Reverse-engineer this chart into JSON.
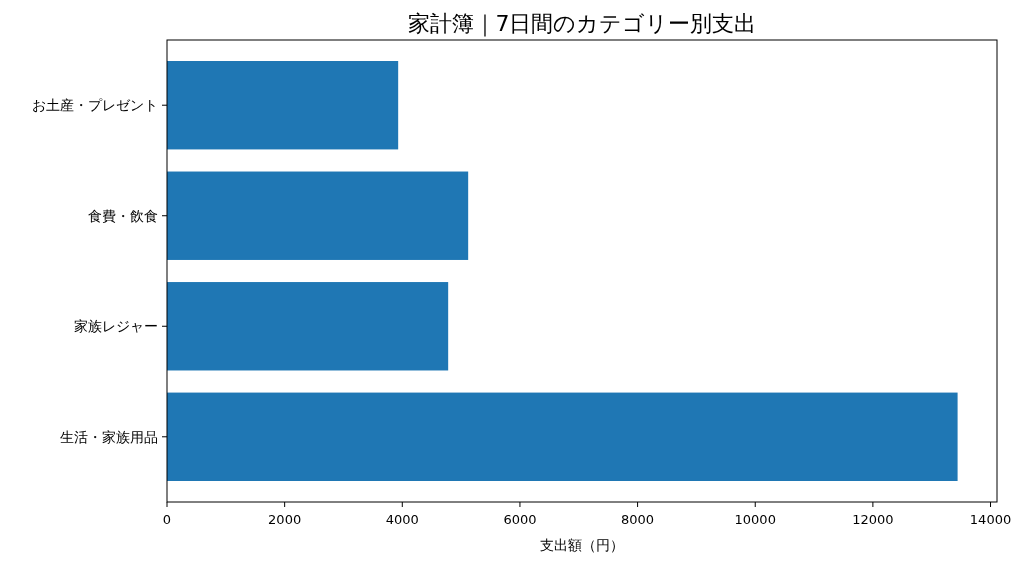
{
  "chart_data": {
    "type": "bar",
    "orientation": "horizontal",
    "title": "家計簿｜7日間のカテゴリー別支出",
    "xlabel": "支出額（円）",
    "categories": [
      "お土産・プレゼント",
      "食費・飲食",
      "家族レジャー",
      "生活・家族用品"
    ],
    "values": [
      3930,
      5120,
      4780,
      13440
    ],
    "color": "#1f77b4",
    "xlim": [
      0,
      14110
    ],
    "xticks": [
      0,
      2000,
      4000,
      6000,
      8000,
      10000,
      12000,
      14000
    ]
  }
}
